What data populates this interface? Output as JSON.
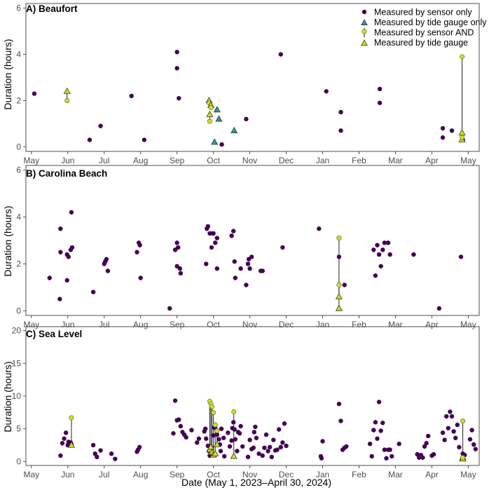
{
  "colors": {
    "sensor_only": "#440154",
    "gauge_only": "#2a9d8f",
    "sensor_and": "#cde11d",
    "gauge_and": "#cde11d",
    "axis": "#4d4d4d"
  },
  "xlabel": "Date (May 1, 2023–April 30, 2024)",
  "month_labels": [
    "May",
    "Jun",
    "Jul",
    "Aug",
    "Sep",
    "Oct",
    "Nov",
    "Dec",
    "Jan",
    "Feb",
    "Mar",
    "Apr",
    "May"
  ],
  "legend": [
    {
      "key": "sensor_only",
      "label": "Measured by sensor only",
      "marker": "circle"
    },
    {
      "key": "gauge_only",
      "label": "Measured by tide gauge only",
      "marker": "triangle"
    },
    {
      "key": "sensor_and",
      "label": "Measured by sensor AND",
      "marker": "circle-line"
    },
    {
      "key": "gauge_and",
      "label": "Measured by tide gauge",
      "marker": "triangle"
    }
  ],
  "chart_data": [
    {
      "type": "scatter",
      "title": "A) Beaufort",
      "ylabel": "Duration (hours)",
      "xlim": [
        -0.15,
        12.3
      ],
      "ylim": [
        -0.2,
        6.2
      ],
      "yticks": [
        0,
        2,
        4,
        6
      ],
      "x_unit": "months since May 1, 2023",
      "sensor_only": [
        [
          0.08,
          2.3
        ],
        [
          1.6,
          0.3
        ],
        [
          1.9,
          0.9
        ],
        [
          2.75,
          2.2
        ],
        [
          3.1,
          0.3
        ],
        [
          4.0,
          4.1
        ],
        [
          4.0,
          3.4
        ],
        [
          4.05,
          2.1
        ],
        [
          5.23,
          0.1
        ],
        [
          5.9,
          1.2
        ],
        [
          6.85,
          4.0
        ],
        [
          8.1,
          2.4
        ],
        [
          8.5,
          1.5
        ],
        [
          8.5,
          0.7
        ],
        [
          9.57,
          2.5
        ],
        [
          9.57,
          1.9
        ],
        [
          11.3,
          0.8
        ],
        [
          11.3,
          0.4
        ],
        [
          11.55,
          0.7
        ],
        [
          11.85,
          0.3
        ]
      ],
      "gauge_only": [
        [
          5.03,
          0.2
        ],
        [
          5.1,
          1.6
        ],
        [
          5.15,
          1.2
        ],
        [
          5.57,
          0.7
        ]
      ],
      "paired": [
        {
          "x": 0.98,
          "sensor": 2.0,
          "gauge": 2.4
        },
        {
          "x": 4.88,
          "sensor": 1.9,
          "gauge": 2.0
        },
        {
          "x": 4.93,
          "sensor": 1.7,
          "gauge": 1.8
        },
        {
          "x": 4.9,
          "sensor": 1.1,
          "gauge": 1.4
        },
        {
          "x": 11.83,
          "sensor": 3.9,
          "gauge": 0.6
        },
        {
          "x": 11.83,
          "sensor": 0.4,
          "gauge": 0.3
        }
      ]
    },
    {
      "type": "scatter",
      "title": "B) Carolina Beach",
      "ylabel": "Duration (hours)",
      "xlim": [
        -0.15,
        12.3
      ],
      "ylim": [
        -0.2,
        6.2
      ],
      "yticks": [
        0,
        2,
        4,
        6
      ],
      "x_unit": "months since May 1, 2023",
      "sensor_only": [
        [
          0.5,
          1.4
        ],
        [
          0.78,
          0.5
        ],
        [
          0.8,
          3.5
        ],
        [
          0.8,
          2.5
        ],
        [
          0.98,
          2.4
        ],
        [
          0.98,
          1.3
        ],
        [
          1.02,
          2.3
        ],
        [
          1.08,
          2.6
        ],
        [
          1.1,
          4.2
        ],
        [
          1.12,
          2.7
        ],
        [
          1.7,
          0.8
        ],
        [
          2.0,
          2.0
        ],
        [
          2.03,
          2.1
        ],
        [
          2.06,
          2.2
        ],
        [
          2.1,
          1.7
        ],
        [
          2.9,
          2.5
        ],
        [
          2.95,
          2.9
        ],
        [
          2.98,
          2.8
        ],
        [
          3.0,
          1.4
        ],
        [
          3.8,
          0.1
        ],
        [
          3.95,
          2.6
        ],
        [
          4.0,
          2.9
        ],
        [
          4.0,
          1.9
        ],
        [
          4.03,
          2.7
        ],
        [
          4.08,
          1.8
        ],
        [
          4.1,
          1.6
        ],
        [
          4.8,
          2.0
        ],
        [
          4.82,
          3.5
        ],
        [
          4.85,
          3.6
        ],
        [
          4.9,
          3.3
        ],
        [
          4.95,
          2.7
        ],
        [
          4.98,
          3.3
        ],
        [
          5.0,
          3.3
        ],
        [
          5.05,
          2.9
        ],
        [
          5.1,
          1.8
        ],
        [
          5.1,
          3.1
        ],
        [
          5.5,
          3.2
        ],
        [
          5.55,
          3.4
        ],
        [
          5.58,
          2.1
        ],
        [
          5.6,
          1.4
        ],
        [
          5.75,
          1.8
        ],
        [
          5.9,
          1.1
        ],
        [
          5.95,
          2.0
        ],
        [
          5.97,
          2.2
        ],
        [
          6.0,
          1.8
        ],
        [
          6.05,
          2.3
        ],
        [
          6.3,
          1.7
        ],
        [
          6.35,
          1.7
        ],
        [
          6.9,
          2.7
        ],
        [
          7.9,
          3.5
        ],
        [
          8.45,
          2.3
        ],
        [
          8.6,
          1.1
        ],
        [
          9.4,
          2.6
        ],
        [
          9.45,
          1.5
        ],
        [
          9.5,
          2.8
        ],
        [
          9.55,
          2.4
        ],
        [
          9.6,
          1.9
        ],
        [
          9.65,
          2.6
        ],
        [
          9.7,
          2.9
        ],
        [
          9.8,
          2.9
        ],
        [
          9.85,
          2.4
        ],
        [
          10.5,
          2.4
        ],
        [
          11.2,
          0.1
        ],
        [
          11.8,
          2.3
        ]
      ],
      "gauge_only": [],
      "paired": [
        {
          "x": 8.45,
          "sensor": 3.1,
          "gauge": 0.6
        },
        {
          "x": 8.45,
          "sensor": 1.1,
          "gauge": 0.1
        }
      ]
    },
    {
      "type": "scatter",
      "title": "C) Sea Level",
      "ylabel": "Duration (hours)",
      "xlim": [
        -0.15,
        12.3
      ],
      "ylim": [
        -0.6,
        20.6
      ],
      "yticks": [
        0,
        5,
        10,
        15,
        20
      ],
      "x_unit": "months since May 1, 2023",
      "sensor_only": [
        [
          0.8,
          0.9
        ],
        [
          0.85,
          2.8
        ],
        [
          0.9,
          3.5
        ],
        [
          0.95,
          4.4
        ],
        [
          1.0,
          2.5
        ],
        [
          1.02,
          3.0
        ],
        [
          1.05,
          2.6
        ],
        [
          1.08,
          2.9
        ],
        [
          1.1,
          2.6
        ],
        [
          1.7,
          2.5
        ],
        [
          1.75,
          1.2
        ],
        [
          1.8,
          0.7
        ],
        [
          1.9,
          1.7
        ],
        [
          2.2,
          1.2
        ],
        [
          2.3,
          0.4
        ],
        [
          2.9,
          1.5
        ],
        [
          2.93,
          1.8
        ],
        [
          2.97,
          2.2
        ],
        [
          3.9,
          4.3
        ],
        [
          3.95,
          9.3
        ],
        [
          4.0,
          6.3
        ],
        [
          4.05,
          6.4
        ],
        [
          4.1,
          5.4
        ],
        [
          4.15,
          4.5
        ],
        [
          4.2,
          4.1
        ],
        [
          4.25,
          3.7
        ],
        [
          4.4,
          4.8
        ],
        [
          4.55,
          2.9
        ],
        [
          4.6,
          3.5
        ],
        [
          4.75,
          4.6
        ],
        [
          4.78,
          5.0
        ],
        [
          4.8,
          3.5
        ],
        [
          4.85,
          2.4
        ],
        [
          4.88,
          1.6
        ],
        [
          4.9,
          0.9
        ],
        [
          4.95,
          2.1
        ],
        [
          5.0,
          4.0
        ],
        [
          5.02,
          5.2
        ],
        [
          5.05,
          5.1
        ],
        [
          5.1,
          4.1
        ],
        [
          5.15,
          3.4
        ],
        [
          5.18,
          2.6
        ],
        [
          5.2,
          1.6
        ],
        [
          5.22,
          5.0
        ],
        [
          5.28,
          3.6
        ],
        [
          5.3,
          0.8
        ],
        [
          5.4,
          4.4
        ],
        [
          5.45,
          2.3
        ],
        [
          5.5,
          3.2
        ],
        [
          5.52,
          5.1
        ],
        [
          5.55,
          6.0
        ],
        [
          5.58,
          4.9
        ],
        [
          5.6,
          3.4
        ],
        [
          5.65,
          1.6
        ],
        [
          5.68,
          4.5
        ],
        [
          5.72,
          4.3
        ],
        [
          5.75,
          5.4
        ],
        [
          5.8,
          2.3
        ],
        [
          5.95,
          0.7
        ],
        [
          6.0,
          3.3
        ],
        [
          6.05,
          1.9
        ],
        [
          6.1,
          2.1
        ],
        [
          6.12,
          4.5
        ],
        [
          6.15,
          5.3
        ],
        [
          6.18,
          3.6
        ],
        [
          6.25,
          1.2
        ],
        [
          6.35,
          0.9
        ],
        [
          6.4,
          2.1
        ],
        [
          6.45,
          4.1
        ],
        [
          6.5,
          1.6
        ],
        [
          6.55,
          2.2
        ],
        [
          6.6,
          0.7
        ],
        [
          6.65,
          3.3
        ],
        [
          6.7,
          1.7
        ],
        [
          6.75,
          1.8
        ],
        [
          6.8,
          4.9
        ],
        [
          6.85,
          2.2
        ],
        [
          6.9,
          2.9
        ],
        [
          6.95,
          5.8
        ],
        [
          7.0,
          2.4
        ],
        [
          7.95,
          0.8
        ],
        [
          7.97,
          0.5
        ],
        [
          8.0,
          3.1
        ],
        [
          8.45,
          8.8
        ],
        [
          8.5,
          6.2
        ],
        [
          8.55,
          1.8
        ],
        [
          8.6,
          2.1
        ],
        [
          8.65,
          2.3
        ],
        [
          9.3,
          2.7
        ],
        [
          9.35,
          0.8
        ],
        [
          9.4,
          4.8
        ],
        [
          9.45,
          6.0
        ],
        [
          9.5,
          3.5
        ],
        [
          9.55,
          9.1
        ],
        [
          9.6,
          4.7
        ],
        [
          9.65,
          5.9
        ],
        [
          9.7,
          1.8
        ],
        [
          9.75,
          0.5
        ],
        [
          9.8,
          1.8
        ],
        [
          9.85,
          1.8
        ],
        [
          9.9,
          0.8
        ],
        [
          10.1,
          2.7
        ],
        [
          10.6,
          1.1
        ],
        [
          10.65,
          0.6
        ],
        [
          10.7,
          1.0
        ],
        [
          10.75,
          0.6
        ],
        [
          10.8,
          2.3
        ],
        [
          10.85,
          2.8
        ],
        [
          10.9,
          3.9
        ],
        [
          11.0,
          0.9
        ],
        [
          11.05,
          1.1
        ],
        [
          11.3,
          4.4
        ],
        [
          11.35,
          3.3
        ],
        [
          11.4,
          6.9
        ],
        [
          11.45,
          5.1
        ],
        [
          11.5,
          7.6
        ],
        [
          11.55,
          6.9
        ],
        [
          11.6,
          4.6
        ],
        [
          11.65,
          3.6
        ],
        [
          11.7,
          5.6
        ],
        [
          11.75,
          2.2
        ],
        [
          12.05,
          3.4
        ],
        [
          12.1,
          4.8
        ],
        [
          12.15,
          2.6
        ],
        [
          12.2,
          1.9
        ],
        [
          11.85,
          1.2
        ],
        [
          11.9,
          1.0
        ]
      ],
      "gauge_only": [],
      "paired": [
        {
          "x": 1.1,
          "sensor": 6.7,
          "gauge": 2.5
        },
        {
          "x": 4.9,
          "sensor": 9.2,
          "gauge": 1.8
        },
        {
          "x": 4.93,
          "sensor": 8.8,
          "gauge": 2.2
        },
        {
          "x": 4.96,
          "sensor": 8.4,
          "gauge": 1.4
        },
        {
          "x": 5.0,
          "sensor": 7.5,
          "gauge": 1.0
        },
        {
          "x": 5.05,
          "sensor": 5.6,
          "gauge": 1.2
        },
        {
          "x": 5.1,
          "sensor": 4.7,
          "gauge": 2.6
        },
        {
          "x": 5.56,
          "sensor": 7.6,
          "gauge": 0.8
        },
        {
          "x": 11.85,
          "sensor": 6.2,
          "gauge": 0.6
        },
        {
          "x": 11.85,
          "sensor": 0.6,
          "gauge": 0.4
        }
      ]
    }
  ]
}
